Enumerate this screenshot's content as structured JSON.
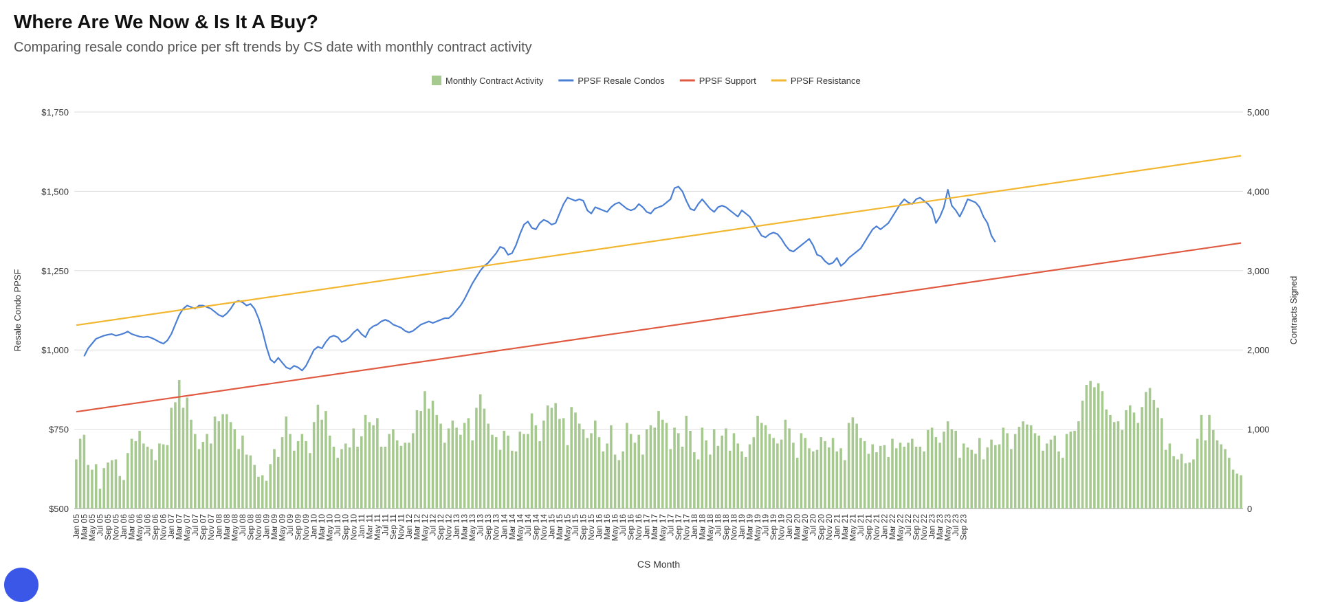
{
  "title": "Where Are We Now & Is It A Buy?",
  "subtitle": "Comparing resale condo price per sft trends by CS date with monthly contract activity",
  "chart_data": {
    "type": "bar+line",
    "xlabel": "CS Month",
    "ylabel_left": "Resale Condo PPSF",
    "ylabel_right": "Contracts Signed",
    "ylim_left": [
      500,
      1750
    ],
    "ylim_right": [
      0,
      5000
    ],
    "yticks_left": [
      "$500",
      "$750",
      "$1,000",
      "$1,250",
      "$1,500",
      "$1,750"
    ],
    "yticks_right": [
      "0",
      "1,000",
      "2,000",
      "3,000",
      "4,000",
      "5,000"
    ],
    "legend_position": "top-center",
    "grid": true,
    "x_tick_labels": [
      "Jan 05",
      "Mar 05",
      "May 05",
      "Jul 05",
      "Sep 05",
      "Nov 05",
      "Jan 06",
      "Mar 06",
      "May 06",
      "Jul 06",
      "Sep 06",
      "Nov 06",
      "Jan 07",
      "Mar 07",
      "May 07",
      "Jul 07",
      "Sep 07",
      "Nov 07",
      "Jan 08",
      "Mar 08",
      "May 08",
      "Jul 08",
      "Sep 08",
      "Nov 08",
      "Jan 09",
      "Mar 09",
      "May 09",
      "Jul 09",
      "Sep 09",
      "Nov 09",
      "Jan 10",
      "Mar 10",
      "May 10",
      "Jul 10",
      "Sep 10",
      "Nov 10",
      "Jan 11",
      "Mar 11",
      "May 11",
      "Jul 11",
      "Sep 11",
      "Nov 11",
      "Jan 12",
      "Mar 12",
      "May 12",
      "Jul 12",
      "Sep 12",
      "Nov 12",
      "Jan 13",
      "Mar 13",
      "May 13",
      "Jul 13",
      "Sep 13",
      "Nov 13",
      "Jan 14",
      "Mar 14",
      "May 14",
      "Jul 14",
      "Sep 14",
      "Nov 14",
      "Jan 15",
      "Mar 15",
      "May 15",
      "Jul 15",
      "Sep 15",
      "Nov 15",
      "Jan 16",
      "Mar 16",
      "May 16",
      "Jul 16",
      "Sep 16",
      "Nov 16",
      "Jan 17",
      "Mar 17",
      "May 17",
      "Jul 17",
      "Sep 17",
      "Nov 17",
      "Jan 18",
      "Mar 18",
      "May 18",
      "Jul 18",
      "Sep 18",
      "Nov 18",
      "Jan 19",
      "Mar 19",
      "May 19",
      "Jul 19",
      "Sep 19",
      "Nov 19",
      "Jan 20",
      "Mar 20",
      "May 20",
      "Jul 20",
      "Sep 20",
      "Nov 20",
      "Jan 21",
      "Mar 21",
      "May 21",
      "Jul 21",
      "Sep 21",
      "Nov 21",
      "Jan 22",
      "Mar 22",
      "May 22",
      "Jul 22",
      "Sep 22",
      "Nov 22",
      "Jan 23",
      "Mar 23",
      "May 23",
      "Jul 23",
      "Sep 23"
    ],
    "series": [
      {
        "name": "Monthly Contract Activity",
        "type": "bar",
        "axis": "right",
        "color": "#a6c98f",
        "start": "Jan 05",
        "values": [
          620,
          880,
          930,
          550,
          490,
          560,
          250,
          510,
          580,
          610,
          620,
          410,
          360,
          700,
          880,
          850,
          980,
          820,
          780,
          750,
          610,
          820,
          810,
          800,
          1270,
          1340,
          1620,
          1270,
          1400,
          1120,
          940,
          750,
          840,
          940,
          820,
          1160,
          1100,
          1190,
          1190,
          1090,
          1000,
          750,
          920,
          680,
          670,
          550,
          400,
          420,
          350,
          560,
          750,
          650,
          900,
          1160,
          940,
          730,
          850,
          940,
          850,
          700,
          1090,
          1310,
          1120,
          1230,
          920,
          780,
          640,
          750,
          820,
          770,
          1010,
          780,
          910,
          1180,
          1090,
          1050,
          1140,
          780,
          780,
          940,
          1000,
          860,
          790,
          830,
          830,
          950,
          1240,
          1230,
          1480,
          1260,
          1360,
          1180,
          1070,
          830,
          1010,
          1110,
          1020,
          930,
          1080,
          1140,
          860,
          1270,
          1440,
          1260,
          1070,
          930,
          900,
          740,
          980,
          920,
          730,
          720,
          970,
          940,
          940,
          1200,
          1050,
          850,
          1110,
          1300,
          1270,
          1330,
          1130,
          1140,
          800,
          1280,
          1210,
          1070,
          1000,
          890,
          950,
          1110,
          900,
          720,
          820,
          1050,
          680,
          610,
          720,
          1080,
          940,
          830,
          930,
          680,
          1000,
          1050,
          1020,
          1230,
          1120,
          1080,
          750,
          1020,
          950,
          780,
          1170,
          980,
          710,
          620,
          1020,
          860,
          680,
          1000,
          790,
          920,
          1010,
          730,
          950,
          820,
          720,
          650,
          810,
          900,
          1170,
          1080,
          1050,
          940,
          890,
          820,
          870,
          1120,
          1010,
          830,
          640,
          950,
          890,
          760,
          720,
          740,
          900,
          850,
          770,
          890,
          720,
          760,
          610,
          1080,
          1150,
          1070,
          890,
          850,
          690,
          810,
          710,
          790,
          800,
          650,
          880,
          760,
          830,
          780,
          830,
          880,
          780,
          780,
          720,
          990,
          1020,
          900,
          830,
          970,
          1100,
          1000,
          980,
          640,
          820,
          770,
          740,
          690,
          890,
          620,
          770,
          870,
          800,
          810,
          1020,
          950,
          750,
          940,
          1030,
          1100,
          1060,
          1050,
          950,
          920,
          730,
          820,
          870,
          920,
          720,
          640,
          940,
          970,
          980,
          1100,
          1360,
          1560,
          1610,
          1530,
          1580,
          1480,
          1250,
          1180,
          1090,
          1100,
          990,
          1240,
          1300,
          1210,
          1080,
          1280,
          1470,
          1520,
          1370,
          1270,
          1140,
          740,
          820,
          660,
          620,
          690,
          570,
          580,
          620,
          880,
          1180,
          860,
          1180,
          990,
          860,
          810,
          750,
          640,
          490,
          440,
          420
        ]
      },
      {
        "name": "PPSF Resale Condos",
        "type": "line",
        "axis": "left",
        "color": "#4a7fd4",
        "start": "Mar 05",
        "values": [
          980,
          1005,
          1020,
          1035,
          1040,
          1045,
          1048,
          1050,
          1045,
          1048,
          1052,
          1058,
          1050,
          1046,
          1042,
          1040,
          1042,
          1038,
          1032,
          1025,
          1020,
          1030,
          1050,
          1080,
          1110,
          1130,
          1140,
          1135,
          1130,
          1140,
          1140,
          1135,
          1130,
          1120,
          1110,
          1105,
          1115,
          1130,
          1150,
          1155,
          1150,
          1140,
          1145,
          1130,
          1100,
          1060,
          1010,
          970,
          960,
          975,
          960,
          945,
          940,
          950,
          945,
          935,
          950,
          975,
          1000,
          1010,
          1005,
          1025,
          1040,
          1045,
          1040,
          1025,
          1030,
          1040,
          1055,
          1065,
          1050,
          1040,
          1065,
          1075,
          1080,
          1090,
          1095,
          1090,
          1080,
          1075,
          1070,
          1060,
          1055,
          1060,
          1070,
          1080,
          1085,
          1090,
          1085,
          1090,
          1095,
          1100,
          1100,
          1110,
          1125,
          1140,
          1160,
          1185,
          1210,
          1230,
          1250,
          1265,
          1275,
          1290,
          1305,
          1325,
          1320,
          1300,
          1305,
          1330,
          1365,
          1395,
          1405,
          1385,
          1380,
          1400,
          1410,
          1405,
          1395,
          1400,
          1430,
          1460,
          1480,
          1475,
          1470,
          1475,
          1470,
          1440,
          1430,
          1450,
          1445,
          1440,
          1435,
          1450,
          1460,
          1465,
          1455,
          1445,
          1440,
          1445,
          1460,
          1450,
          1435,
          1430,
          1445,
          1450,
          1455,
          1465,
          1475,
          1510,
          1515,
          1500,
          1470,
          1445,
          1440,
          1460,
          1475,
          1460,
          1445,
          1435,
          1450,
          1455,
          1450,
          1440,
          1430,
          1420,
          1440,
          1430,
          1420,
          1400,
          1380,
          1360,
          1355,
          1365,
          1370,
          1365,
          1350,
          1330,
          1315,
          1310,
          1320,
          1330,
          1340,
          1350,
          1330,
          1300,
          1295,
          1280,
          1270,
          1275,
          1290,
          1265,
          1275,
          1290,
          1300,
          1310,
          1320,
          1340,
          1360,
          1380,
          1390,
          1380,
          1390,
          1400,
          1420,
          1440,
          1460,
          1475,
          1465,
          1460,
          1475,
          1480,
          1470,
          1460,
          1445,
          1400,
          1420,
          1450,
          1505,
          1455,
          1440,
          1420,
          1445,
          1475,
          1470,
          1465,
          1450,
          1420,
          1400,
          1360,
          1340
        ]
      },
      {
        "name": "PPSF Support",
        "type": "line",
        "axis": "left",
        "color": "#e05a41",
        "values_endpoints": [
          805,
          1337
        ]
      },
      {
        "name": "PPSF Resistance",
        "type": "line",
        "axis": "left",
        "color": "#f2b630",
        "values_endpoints": [
          1078,
          1612
        ]
      }
    ]
  }
}
